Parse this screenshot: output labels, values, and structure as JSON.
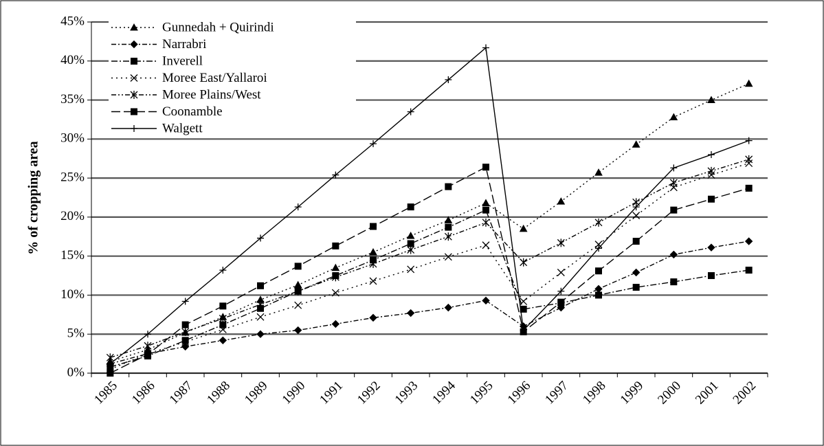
{
  "chart_data": {
    "type": "line",
    "ylabel": "% of cropping area",
    "categories": [
      "1985",
      "1986",
      "1987",
      "1988",
      "1989",
      "1990",
      "1991",
      "1992",
      "1993",
      "1994",
      "1995",
      "1996",
      "1997",
      "1998",
      "1999",
      "2000",
      "2001",
      "2002"
    ],
    "ylim": [
      0,
      45
    ],
    "yticks": [
      {
        "value": 0,
        "label": "0%"
      },
      {
        "value": 5,
        "label": "5%"
      },
      {
        "value": 10,
        "label": "10%"
      },
      {
        "value": 15,
        "label": "15%"
      },
      {
        "value": 20,
        "label": "20%"
      },
      {
        "value": 25,
        "label": "25%"
      },
      {
        "value": 30,
        "label": "30%"
      },
      {
        "value": 35,
        "label": "35%"
      },
      {
        "value": 40,
        "label": "40%"
      },
      {
        "value": 45,
        "label": "45%"
      }
    ],
    "grid": true,
    "legend": "upper left",
    "series": [
      {
        "name": "Gunnedah + Quirindi",
        "color": "#000000",
        "marker": "triangle",
        "dash": "2,4",
        "values": [
          1.5,
          3,
          5.2,
          7.2,
          9.4,
          11.3,
          13.5,
          15.5,
          17.6,
          19.6,
          21.8,
          18.5,
          22,
          25.7,
          29.3,
          32.8,
          35,
          37.1
        ]
      },
      {
        "name": "Narrabri",
        "color": "#000000",
        "marker": "diamond",
        "dash": "7,3,2,3",
        "values": [
          1.2,
          2.5,
          3.4,
          4.2,
          5,
          5.5,
          6.3,
          7.1,
          7.7,
          8.4,
          9.3,
          6,
          8.4,
          10.8,
          12.9,
          15.2,
          16.1,
          16.9
        ]
      },
      {
        "name": "Inverell",
        "color": "#000000",
        "marker": "square",
        "dash": "9,3,2,3",
        "values": [
          0.8,
          2.2,
          4.2,
          6.2,
          8.3,
          10.5,
          12.5,
          14.5,
          16.6,
          18.7,
          20.9,
          8.2,
          9,
          10,
          11,
          11.7,
          12.5,
          13.2
        ]
      },
      {
        "name": "Moree East/Yallaroi",
        "color": "#000000",
        "marker": "x",
        "dash": "2,5",
        "values": [
          0.5,
          2.5,
          4,
          5.6,
          7.2,
          8.7,
          10.3,
          11.8,
          13.3,
          14.9,
          16.4,
          9.2,
          12.9,
          16.5,
          20.2,
          23.8,
          25.4,
          26.9
        ]
      },
      {
        "name": "Moree Plains/West",
        "color": "#000000",
        "marker": "star",
        "dash": "7,3,2,3,2,3",
        "values": [
          2,
          3.5,
          5.3,
          7,
          8.8,
          10.5,
          12.3,
          14,
          15.8,
          17.5,
          19.3,
          14.2,
          16.7,
          19.3,
          21.9,
          24.4,
          25.9,
          27.4
        ]
      },
      {
        "name": "Coonamble",
        "color": "#000000",
        "marker": "square",
        "dash": "13,5",
        "values": [
          0,
          2.4,
          6.2,
          8.6,
          11.2,
          13.7,
          16.3,
          18.8,
          21.3,
          23.9,
          26.4,
          5.3,
          9.1,
          13.1,
          16.9,
          20.9,
          22.3,
          23.7
        ]
      },
      {
        "name": "Walgett",
        "color": "#000000",
        "marker": "plus",
        "dash": "none",
        "values": [
          1.2,
          5,
          9.2,
          13.2,
          17.3,
          21.3,
          25.4,
          29.4,
          33.5,
          37.6,
          41.7,
          5.5,
          10.5,
          16,
          21.3,
          26.3,
          28,
          29.8
        ]
      }
    ]
  }
}
